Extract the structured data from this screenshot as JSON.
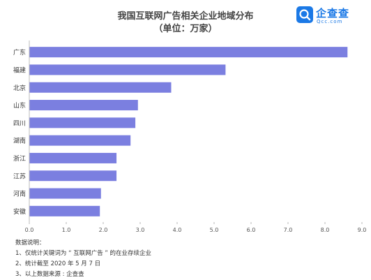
{
  "header": {
    "title": "我国互联网广告相关企业地域分布",
    "subtitle": "（单位：万家）"
  },
  "logo": {
    "text": "企查查",
    "sub": "Qcc.com",
    "icon": "qcc-search-logo-icon",
    "color": "#1b79e6"
  },
  "chart_data": {
    "type": "bar",
    "orientation": "horizontal",
    "categories": [
      "广东",
      "福建",
      "北京",
      "山东",
      "四川",
      "湖南",
      "浙江",
      "江苏",
      "河南",
      "安徽"
    ],
    "values": [
      8.6,
      5.3,
      3.83,
      2.93,
      2.86,
      2.73,
      2.35,
      2.35,
      1.93,
      1.9
    ],
    "xlim": [
      0,
      9
    ],
    "xticks": [
      "0.0",
      "1.0",
      "2.0",
      "3.0",
      "4.0",
      "5.0",
      "6.0",
      "7.0",
      "8.0",
      "9.0"
    ],
    "bar_color": "#7b7fe0",
    "grid": false
  },
  "notes": {
    "heading": "数据说明：",
    "items": [
      "1、仅统计关键词为 “ 互联网广告 ” 的在业存续企业",
      "2、统计截至 2020 年 5 月 7 日",
      "3、以上数据来源 : 企查查"
    ]
  }
}
